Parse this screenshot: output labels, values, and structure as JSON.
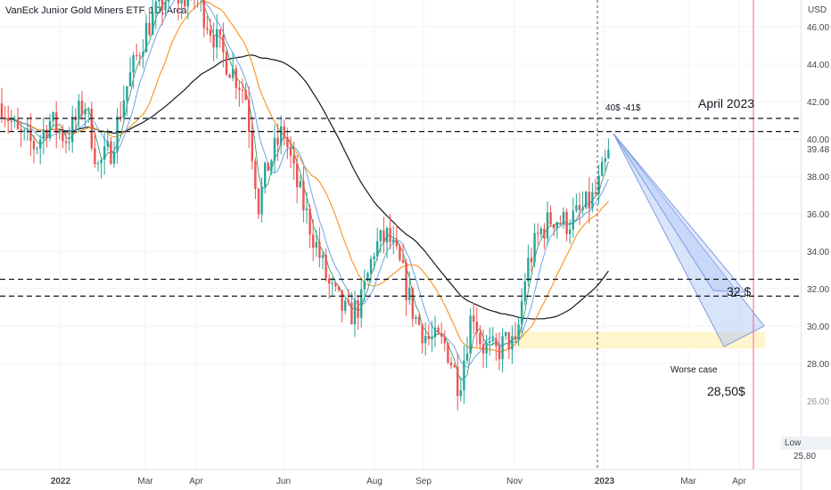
{
  "title": "VanEck Junior Gold Miners ETF, 1D, Arca",
  "colors": {
    "up": "#26a69a",
    "down": "#ef5350",
    "ma_black": "#131722",
    "ma_orange": "#f7931a",
    "ma_blue": "#6aa5e8",
    "ma_teal": "#2e8b57",
    "highlight": "#fff5cc",
    "projection": "#a9c4f5",
    "vline_red": "#f06292"
  },
  "axis": {
    "currency": "USD",
    "price_ticks": [
      "46.00",
      "44.00",
      "42.00",
      "40.00",
      "38.00",
      "36.00",
      "34.00",
      "32.00",
      "30.00",
      "28.00"
    ],
    "last_price": "39.48",
    "low_label": "Low",
    "low_value": "25.80",
    "partial_tick": "26.00",
    "time_ticks": [
      "2022",
      "Mar",
      "Apr",
      "Jun",
      "Aug",
      "Sep",
      "Nov",
      "2023",
      "Mar",
      "Apr"
    ]
  },
  "annotations": {
    "range_text": "40$ -41$",
    "april_text": "April 2023",
    "support_text": "32 $",
    "worse_case_text": "Worse case",
    "target_text": "28,50$"
  },
  "chart_data": {
    "type": "candlestick",
    "title": "VanEck Junior Gold Miners ETF, 1D, Arca",
    "ylim": [
      25.0,
      47.0
    ],
    "x_ticks": [
      "2022",
      "Mar",
      "Apr",
      "Jun",
      "Aug",
      "Sep",
      "Nov",
      "2023",
      "Mar",
      "Apr"
    ],
    "key_closes": [
      {
        "date": "2022-01-03",
        "close": 42.1
      },
      {
        "date": "2022-02-15",
        "close": 39.0
      },
      {
        "date": "2022-03-08",
        "close": 45.5
      },
      {
        "date": "2022-04-18",
        "close": 47.0
      },
      {
        "date": "2022-05-12",
        "close": 36.2
      },
      {
        "date": "2022-06-03",
        "close": 41.2
      },
      {
        "date": "2022-07-14",
        "close": 30.0
      },
      {
        "date": "2022-08-10",
        "close": 34.8
      },
      {
        "date": "2022-09-01",
        "close": 28.5
      },
      {
        "date": "2022-09-28",
        "close": 26.0
      },
      {
        "date": "2022-10-20",
        "close": 28.9
      },
      {
        "date": "2022-11-15",
        "close": 34.2
      },
      {
        "date": "2022-12-15",
        "close": 36.1
      },
      {
        "date": "2023-01-06",
        "close": 39.48
      }
    ],
    "horizontal_levels": [
      41.1,
      40.4,
      32.5,
      31.6
    ],
    "worse_case_zone": [
      28.8,
      29.7
    ],
    "projection_target": 28.5,
    "low": 25.8
  }
}
